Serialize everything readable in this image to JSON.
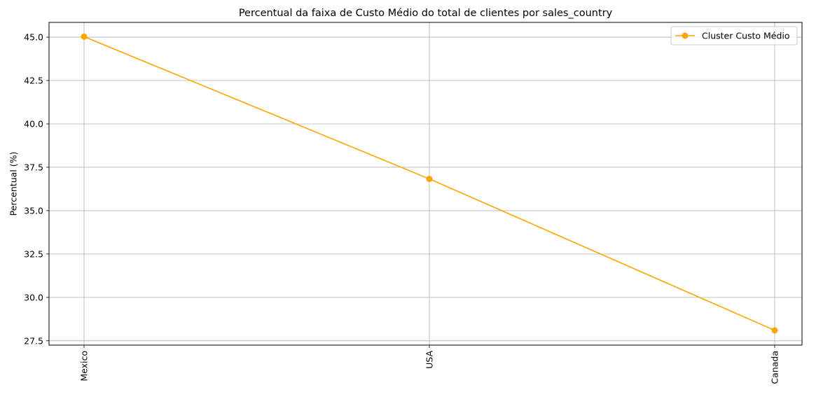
{
  "chart_data": {
    "type": "line",
    "title": "Percentual da faixa de Custo Médio do total de clientes por sales_country",
    "xlabel": "",
    "ylabel": "Percentual (%)",
    "categories": [
      "Mexico",
      "USA",
      "Canada"
    ],
    "series": [
      {
        "name": "Cluster Custo Médio",
        "values": [
          45.03,
          36.83,
          28.1
        ],
        "color": "#FFA500",
        "marker": "circle"
      }
    ],
    "ylim": [
      27.25,
      45.85
    ],
    "yticks": [
      27.5,
      30.0,
      32.5,
      35.0,
      37.5,
      40.0,
      42.5,
      45.0
    ],
    "ytick_labels": [
      "27.5",
      "30.0",
      "32.5",
      "35.0",
      "37.5",
      "40.0",
      "42.5",
      "45.0"
    ],
    "x_tick_rotation": "vertical",
    "grid": true,
    "legend_position": "top-right"
  }
}
